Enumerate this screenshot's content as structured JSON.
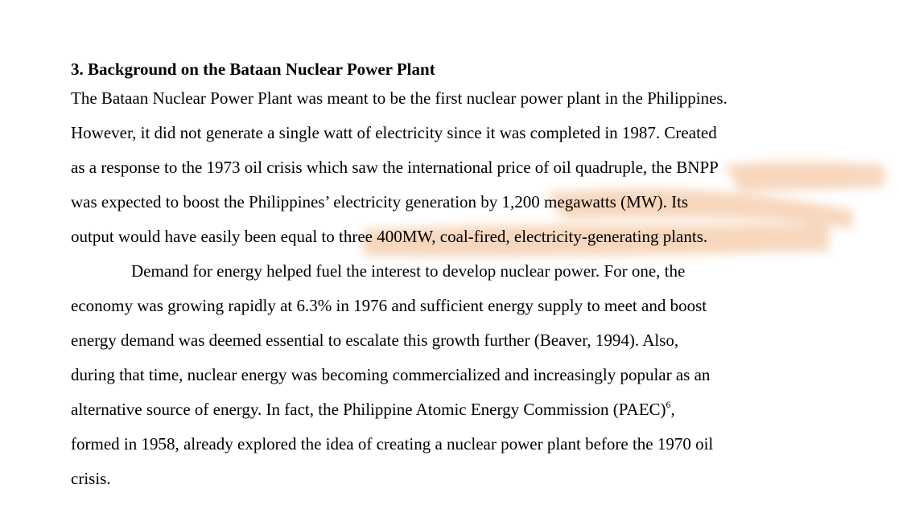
{
  "section": {
    "heading": "3. Background on the Bataan Nuclear Power Plant",
    "paragraph1": [
      "The Bataan Nuclear Power Plant was meant to be the first nuclear power plant in the Philippines.",
      "However, it did not generate a single watt of electricity since it was completed in 1987. Created",
      "as a response to the 1973 oil crisis which saw the international price of oil quadruple, the BNPP",
      "was expected to boost the Philippines’ electricity generation by 1,200 megawatts (MW). Its",
      "output would have easily been equal to three 400MW, coal-fired, electricity-generating plants."
    ],
    "paragraph2": [
      "Demand for energy helped fuel the interest to develop nuclear power. For one, the",
      "economy was growing rapidly at 6.3% in 1976 and sufficient energy supply to meet and boost",
      "energy demand was deemed essential to escalate this growth further (Beaver, 1994).  Also,",
      "during that time, nuclear energy was becoming commercialized and increasingly popular as an",
      "alternative source of energy. In fact, the Philippine Atomic Energy Commission (PAEC)",
      "formed in 1958, already explored the idea of creating a nuclear power plant before the 1970 oil",
      "crisis."
    ],
    "footnote_ref": "6",
    "footnote_trailing": ","
  },
  "highlight_color": "#f4c9a6"
}
